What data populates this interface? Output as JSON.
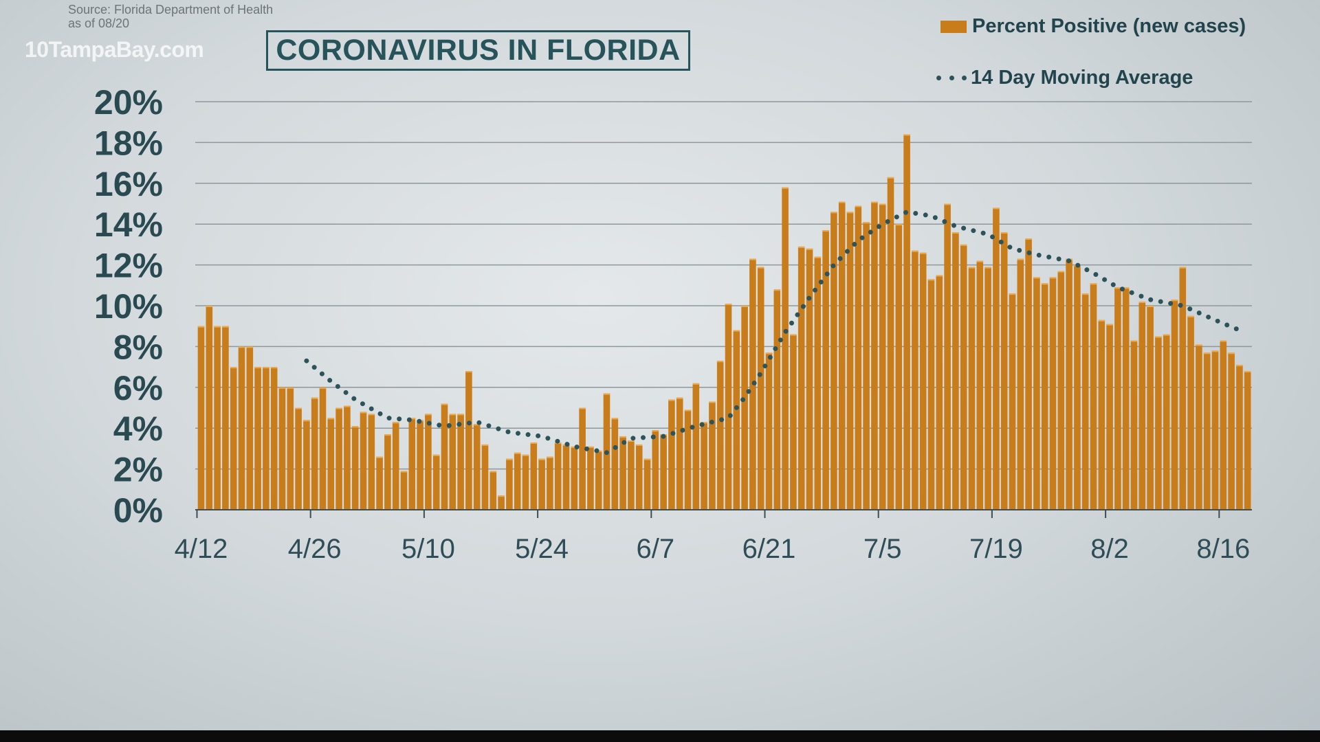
{
  "source": "Source: Florida Department of Health",
  "as_of": "as of 08/20",
  "watermark": "10TampaBay.com",
  "colors": {
    "bars": "#c97d1a",
    "moving_average": "#2c5359",
    "title": "#27535a"
  },
  "chart_data": {
    "type": "bar",
    "title": "CORONAVIRUS IN FLORIDA",
    "xlabel": "",
    "ylabel": "",
    "ylim": [
      0,
      20
    ],
    "grid": true,
    "legend_placement": "top-right",
    "yticks": [
      "0%",
      "2%",
      "4%",
      "6%",
      "8%",
      "10%",
      "12%",
      "14%",
      "16%",
      "18%",
      "20%"
    ],
    "xticks": [
      "4/12",
      "4/26",
      "5/10",
      "5/24",
      "6/7",
      "6/21",
      "7/5",
      "7/19",
      "8/2",
      "8/16"
    ],
    "categories": [
      "4/12",
      "4/13",
      "4/14",
      "4/15",
      "4/16",
      "4/17",
      "4/18",
      "4/19",
      "4/20",
      "4/21",
      "4/22",
      "4/23",
      "4/24",
      "4/25",
      "4/26",
      "4/27",
      "4/28",
      "4/29",
      "4/30",
      "5/1",
      "5/2",
      "5/3",
      "5/4",
      "5/5",
      "5/6",
      "5/7",
      "5/8",
      "5/9",
      "5/10",
      "5/11",
      "5/12",
      "5/13",
      "5/14",
      "5/15",
      "5/16",
      "5/17",
      "5/18",
      "5/19",
      "5/20",
      "5/21",
      "5/22",
      "5/23",
      "5/24",
      "5/25",
      "5/26",
      "5/27",
      "5/28",
      "5/29",
      "5/30",
      "5/31",
      "6/1",
      "6/2",
      "6/3",
      "6/4",
      "6/5",
      "6/6",
      "6/7",
      "6/8",
      "6/9",
      "6/10",
      "6/11",
      "6/12",
      "6/13",
      "6/14",
      "6/15",
      "6/16",
      "6/17",
      "6/18",
      "6/19",
      "6/20",
      "6/21",
      "6/22",
      "6/23",
      "6/24",
      "6/25",
      "6/26",
      "6/27",
      "6/28",
      "6/29",
      "6/30",
      "7/1",
      "7/2",
      "7/3",
      "7/4",
      "7/5",
      "7/6",
      "7/7",
      "7/8",
      "7/9",
      "7/10",
      "7/11",
      "7/12",
      "7/13",
      "7/14",
      "7/15",
      "7/16",
      "7/17",
      "7/18",
      "7/19",
      "7/20",
      "7/21",
      "7/22",
      "7/23",
      "7/24",
      "7/25",
      "7/26",
      "7/27",
      "7/28",
      "7/29",
      "7/30",
      "7/31",
      "8/1",
      "8/2",
      "8/3",
      "8/4",
      "8/5",
      "8/6",
      "8/7",
      "8/8",
      "8/9",
      "8/10",
      "8/11",
      "8/12",
      "8/13",
      "8/14",
      "8/15",
      "8/16",
      "8/17",
      "8/18",
      "8/19"
    ],
    "series": [
      {
        "name": "Percent Positive (new cases)",
        "type": "bar",
        "values": [
          9.0,
          10.0,
          9.0,
          9.0,
          7.0,
          8.0,
          8.0,
          7.0,
          7.0,
          7.0,
          6.0,
          6.0,
          5.0,
          4.4,
          5.5,
          6.0,
          4.5,
          5.0,
          5.1,
          4.1,
          4.8,
          4.7,
          2.6,
          3.7,
          4.3,
          1.9,
          4.5,
          4.4,
          4.7,
          2.7,
          5.2,
          4.7,
          4.7,
          6.8,
          4.2,
          3.2,
          1.9,
          0.7,
          2.5,
          2.8,
          2.7,
          3.3,
          2.5,
          2.6,
          3.3,
          3.2,
          3.1,
          5.0,
          3.1,
          2.9,
          5.7,
          4.5,
          3.6,
          3.4,
          3.2,
          2.5,
          3.9,
          3.7,
          5.4,
          5.5,
          4.9,
          6.2,
          4.3,
          5.3,
          7.3,
          10.1,
          8.8,
          10.0,
          12.3,
          11.9,
          7.7,
          10.8,
          15.8,
          8.6,
          12.9,
          12.8,
          12.4,
          13.7,
          14.6,
          15.1,
          14.6,
          14.9,
          14.1,
          15.1,
          15.0,
          16.3,
          14.0,
          18.4,
          12.7,
          12.6,
          11.3,
          11.5,
          15.0,
          13.6,
          13.0,
          11.9,
          12.2,
          11.9,
          14.8,
          13.6,
          10.6,
          12.3,
          13.3,
          11.4,
          11.1,
          11.4,
          11.7,
          12.3,
          12.0,
          10.6,
          11.1,
          9.3,
          9.1,
          10.9,
          10.9,
          8.3,
          10.2,
          10.0,
          8.5,
          8.6,
          10.3,
          11.9,
          9.5,
          8.1,
          7.7,
          7.8,
          8.3,
          7.7,
          7.1,
          6.8
        ]
      },
      {
        "name": "14 Day Moving Average",
        "type": "line",
        "style": "dotted",
        "points": [
          [
            "4/25",
            7.3
          ],
          [
            "4/28",
            6.3
          ],
          [
            "5/1",
            5.4
          ],
          [
            "5/5",
            4.5
          ],
          [
            "5/8",
            4.4
          ],
          [
            "5/12",
            4.1
          ],
          [
            "5/16",
            4.3
          ],
          [
            "5/20",
            3.8
          ],
          [
            "5/24",
            3.6
          ],
          [
            "5/28",
            3.1
          ],
          [
            "6/1",
            2.8
          ],
          [
            "6/4",
            3.5
          ],
          [
            "6/8",
            3.6
          ],
          [
            "6/12",
            4.1
          ],
          [
            "6/16",
            4.5
          ],
          [
            "6/18",
            5.5
          ],
          [
            "6/20",
            6.7
          ],
          [
            "6/23",
            8.7
          ],
          [
            "6/26",
            10.4
          ],
          [
            "6/29",
            12.0
          ],
          [
            "7/2",
            13.2
          ],
          [
            "7/5",
            14.0
          ],
          [
            "7/8",
            14.6
          ],
          [
            "7/11",
            14.4
          ],
          [
            "7/14",
            13.9
          ],
          [
            "7/18",
            13.5
          ],
          [
            "7/21",
            12.8
          ],
          [
            "7/24",
            12.5
          ],
          [
            "7/28",
            12.2
          ],
          [
            "7/31",
            11.6
          ],
          [
            "8/3",
            10.9
          ],
          [
            "8/7",
            10.3
          ],
          [
            "8/11",
            10.0
          ],
          [
            "8/15",
            9.3
          ],
          [
            "8/18",
            8.8
          ]
        ]
      }
    ]
  }
}
